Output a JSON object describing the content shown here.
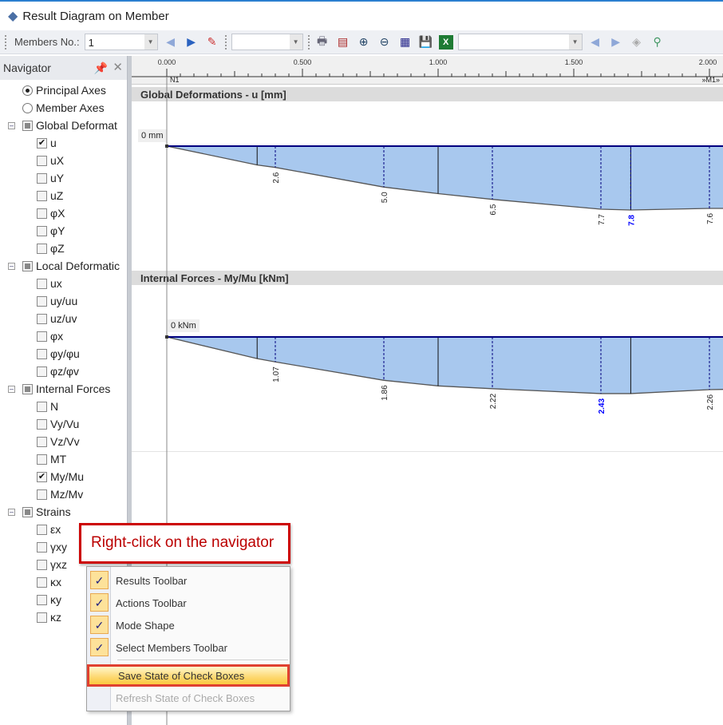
{
  "window": {
    "title": "Result Diagram on Member",
    "icon": "diamond-app-icon"
  },
  "toolbar": {
    "members_label": "Members No.:",
    "member_value": "1",
    "combo2_value": "",
    "combo3_value": "",
    "icons": [
      "prev-arrow-icon",
      "next-arrow-icon",
      "pick-member-icon",
      "print-icon",
      "result-values-icon",
      "zoom-in-icon",
      "zoom-out-icon",
      "export-icon",
      "save-icon",
      "excel-icon",
      "prev-arrow-icon",
      "next-arrow-icon",
      "view-icon",
      "settings-icon"
    ]
  },
  "navigator": {
    "title": "Navigator",
    "items": [
      {
        "label": "Principal Axes",
        "type": "radio",
        "checked": true,
        "level": 0
      },
      {
        "label": "Member Axes",
        "type": "radio",
        "checked": false,
        "level": 0
      },
      {
        "label": "Global Deformat",
        "type": "group",
        "state": "partial",
        "level": 0
      },
      {
        "label": "u",
        "type": "check",
        "checked": true,
        "level": 1
      },
      {
        "label": "uX",
        "type": "check",
        "checked": false,
        "level": 1
      },
      {
        "label": "uY",
        "type": "check",
        "checked": false,
        "level": 1
      },
      {
        "label": "uZ",
        "type": "check",
        "checked": false,
        "level": 1
      },
      {
        "label": "φX",
        "type": "check",
        "checked": false,
        "level": 1
      },
      {
        "label": "φY",
        "type": "check",
        "checked": false,
        "level": 1
      },
      {
        "label": "φZ",
        "type": "check",
        "checked": false,
        "level": 1
      },
      {
        "label": "Local Deformatic",
        "type": "group",
        "state": "partial",
        "level": 0
      },
      {
        "label": "ux",
        "type": "check",
        "checked": false,
        "level": 1
      },
      {
        "label": "uy/uu",
        "type": "check",
        "checked": false,
        "level": 1
      },
      {
        "label": "uz/uv",
        "type": "check",
        "checked": false,
        "level": 1
      },
      {
        "label": "φx",
        "type": "check",
        "checked": false,
        "level": 1
      },
      {
        "label": "φy/φu",
        "type": "check",
        "checked": false,
        "level": 1
      },
      {
        "label": "φz/φv",
        "type": "check",
        "checked": false,
        "level": 1
      },
      {
        "label": "Internal Forces",
        "type": "group",
        "state": "partial",
        "level": 0
      },
      {
        "label": "N",
        "type": "check",
        "checked": false,
        "level": 1
      },
      {
        "label": "Vy/Vu",
        "type": "check",
        "checked": false,
        "level": 1
      },
      {
        "label": "Vz/Vv",
        "type": "check",
        "checked": false,
        "level": 1
      },
      {
        "label": "MT",
        "type": "check",
        "checked": false,
        "level": 1
      },
      {
        "label": "My/Mu",
        "type": "check",
        "checked": true,
        "level": 1
      },
      {
        "label": "Mz/Mv",
        "type": "check",
        "checked": false,
        "level": 1
      },
      {
        "label": "Strains",
        "type": "group",
        "state": "partial",
        "level": 0
      },
      {
        "label": "εx",
        "type": "check",
        "checked": false,
        "level": 1
      },
      {
        "label": "γxy",
        "type": "check",
        "checked": false,
        "level": 1
      },
      {
        "label": "γxz",
        "type": "check",
        "checked": false,
        "level": 1
      },
      {
        "label": "κx",
        "type": "check",
        "checked": false,
        "level": 1
      },
      {
        "label": "κy",
        "type": "check",
        "checked": false,
        "level": 1
      },
      {
        "label": "κz",
        "type": "check",
        "checked": false,
        "level": 1
      }
    ]
  },
  "ruler": {
    "ticks": [
      "0.000",
      "0.500",
      "1.000",
      "1.500",
      "2.000"
    ],
    "node_start": "N1",
    "member_end": "»M1»"
  },
  "chart_data": [
    {
      "type": "area",
      "title": "Global Deformations - u [mm]",
      "zero_label": "0 mm",
      "points": [
        {
          "x": 0,
          "v": 0
        },
        {
          "x": 0.333,
          "v": 2.3
        },
        {
          "x": 0.4,
          "v": 2.6,
          "label": "2.6"
        },
        {
          "x": 0.8,
          "v": 5.0,
          "label": "5.0"
        },
        {
          "x": 1.0,
          "v": 5.8
        },
        {
          "x": 1.2,
          "v": 6.5,
          "label": "6.5"
        },
        {
          "x": 1.6,
          "v": 7.7,
          "label": "7.7"
        },
        {
          "x": 1.71,
          "v": 7.8,
          "label": "7.8",
          "max": true
        },
        {
          "x": 2.0,
          "v": 7.6,
          "label": "7.6"
        },
        {
          "x": 2.05,
          "v": 7.6
        }
      ],
      "sections": [
        0.333,
        1.0,
        1.71
      ]
    },
    {
      "type": "area",
      "title": "Internal Forces - My/Mu [kNm]",
      "zero_label": "0 kNm",
      "points": [
        {
          "x": 0,
          "v": 0
        },
        {
          "x": 0.333,
          "v": 0.93
        },
        {
          "x": 0.4,
          "v": 1.07,
          "label": "1.07"
        },
        {
          "x": 0.8,
          "v": 1.86,
          "label": "1.86"
        },
        {
          "x": 1.0,
          "v": 2.1
        },
        {
          "x": 1.2,
          "v": 2.22,
          "label": "2.22"
        },
        {
          "x": 1.6,
          "v": 2.43,
          "label": "2.43",
          "max": true
        },
        {
          "x": 1.71,
          "v": 2.43
        },
        {
          "x": 2.0,
          "v": 2.26,
          "label": "2.26"
        },
        {
          "x": 2.05,
          "v": 2.25
        }
      ],
      "sections": [
        0.333,
        1.0,
        1.71
      ]
    }
  ],
  "colors": {
    "fill": "#a8c8ee",
    "baseline": "#00007f",
    "max_label": "#0000ff",
    "callout": "#c00000",
    "highlight": "#fdd870"
  },
  "callout": {
    "text": "Right-click on the navigator"
  },
  "context_menu": {
    "items": [
      {
        "label": "Results Toolbar",
        "checked": true
      },
      {
        "label": "Actions Toolbar",
        "checked": true
      },
      {
        "label": "Mode Shape",
        "checked": true
      },
      {
        "label": "Select Members Toolbar",
        "checked": true
      },
      {
        "label": "Save State of Check Boxes",
        "highlighted": true
      },
      {
        "label": "Refresh State of Check Boxes",
        "disabled": true
      }
    ]
  }
}
